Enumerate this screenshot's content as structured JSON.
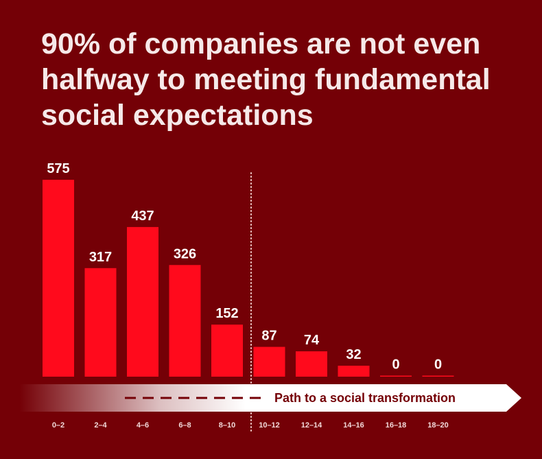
{
  "title_lines": [
    "90% of companies are not even",
    "halfway to meeting fundamental",
    "social expectations"
  ],
  "arrow_label": "Path to a social transformation",
  "colors": {
    "background": "#740006",
    "bar": "#ff0a1c",
    "title": "#f6e9e9",
    "arrow": "#ffffff"
  },
  "chart_data": {
    "type": "bar",
    "title": "90% of companies are not even halfway to meeting fundamental social expectations",
    "categories": [
      "0–2",
      "2–4",
      "4–6",
      "6–8",
      "8–10",
      "10–12",
      "12–14",
      "14–16",
      "16–18",
      "18–20"
    ],
    "values": [
      575,
      317,
      437,
      326,
      152,
      87,
      74,
      32,
      0,
      0
    ],
    "xlabel": "",
    "ylabel": "",
    "ylim": [
      0,
      575
    ],
    "grid": false,
    "legend": "none",
    "annotations": [
      "Path to a social transformation"
    ]
  }
}
